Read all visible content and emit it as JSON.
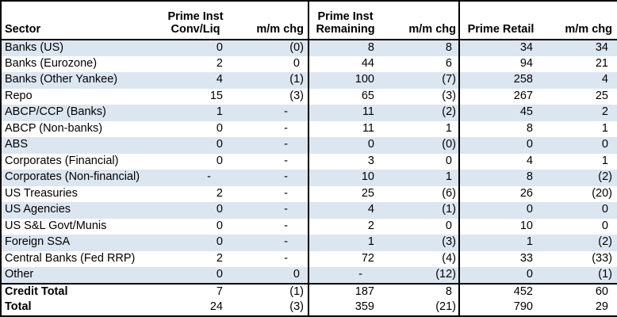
{
  "table": {
    "headers": {
      "sector": "Sector",
      "prime_inst_conv_line1": "Prime Inst",
      "prime_inst_conv_line2": "Conv/Liq",
      "mm_chg_1": "m/m chg",
      "prime_inst_rem_line1": "Prime Inst",
      "prime_inst_rem_line2": "Remaining",
      "mm_chg_2": "m/m chg",
      "prime_retail": "Prime Retail",
      "mm_chg_3": "m/m chg"
    },
    "rows": [
      {
        "sector": "Banks (US)",
        "conv": "0",
        "conv_chg": "(0)",
        "rem": "8",
        "rem_chg": "8",
        "retail": "34",
        "retail_chg": "34"
      },
      {
        "sector": "Banks (Eurozone)",
        "conv": "2",
        "conv_chg": "0",
        "rem": "44",
        "rem_chg": "6",
        "retail": "94",
        "retail_chg": "21"
      },
      {
        "sector": "Banks (Other Yankee)",
        "conv": "4",
        "conv_chg": "(1)",
        "rem": "100",
        "rem_chg": "(7)",
        "retail": "258",
        "retail_chg": "4"
      },
      {
        "sector": "Repo",
        "conv": "15",
        "conv_chg": "(3)",
        "rem": "65",
        "rem_chg": "(3)",
        "retail": "267",
        "retail_chg": "25"
      },
      {
        "sector": "ABCP/CCP (Banks)",
        "conv": "1",
        "conv_chg": "-",
        "rem": "11",
        "rem_chg": "(2)",
        "retail": "45",
        "retail_chg": "2"
      },
      {
        "sector": "ABCP (Non-banks)",
        "conv": "0",
        "conv_chg": "-",
        "rem": "11",
        "rem_chg": "1",
        "retail": "8",
        "retail_chg": "1"
      },
      {
        "sector": "ABS",
        "conv": "0",
        "conv_chg": "-",
        "rem": "0",
        "rem_chg": "(0)",
        "retail": "0",
        "retail_chg": "0"
      },
      {
        "sector": "Corporates (Financial)",
        "conv": "0",
        "conv_chg": "-",
        "rem": "3",
        "rem_chg": "0",
        "retail": "4",
        "retail_chg": "1"
      },
      {
        "sector": "Corporates (Non-financial)",
        "conv": "-",
        "conv_chg": "-",
        "rem": "10",
        "rem_chg": "1",
        "retail": "8",
        "retail_chg": "(2)"
      },
      {
        "sector": "US Treasuries",
        "conv": "2",
        "conv_chg": "-",
        "rem": "25",
        "rem_chg": "(6)",
        "retail": "26",
        "retail_chg": "(20)"
      },
      {
        "sector": "US Agencies",
        "conv": "0",
        "conv_chg": "-",
        "rem": "4",
        "rem_chg": "(1)",
        "retail": "0",
        "retail_chg": "0"
      },
      {
        "sector": "US S&L Govt/Munis",
        "conv": "0",
        "conv_chg": "-",
        "rem": "2",
        "rem_chg": "0",
        "retail": "10",
        "retail_chg": "0"
      },
      {
        "sector": "Foreign SSA",
        "conv": "0",
        "conv_chg": "-",
        "rem": "1",
        "rem_chg": "(3)",
        "retail": "1",
        "retail_chg": "(2)"
      },
      {
        "sector": "Central Banks (Fed RRP)",
        "conv": "2",
        "conv_chg": "-",
        "rem": "72",
        "rem_chg": "(4)",
        "retail": "33",
        "retail_chg": "(33)"
      },
      {
        "sector": "Other",
        "conv": "0",
        "conv_chg": "0",
        "rem": "-",
        "rem_chg": "(12)",
        "retail": "0",
        "retail_chg": "(1)"
      }
    ],
    "totals": [
      {
        "sector": "Credit Total",
        "conv": "7",
        "conv_chg": "(1)",
        "rem": "187",
        "rem_chg": "8",
        "retail": "452",
        "retail_chg": "60"
      },
      {
        "sector": "Total",
        "conv": "24",
        "conv_chg": "(3)",
        "rem": "359",
        "rem_chg": "(21)",
        "retail": "790",
        "retail_chg": "29"
      }
    ],
    "style": {
      "stripe_color": "#dce6f1",
      "border_color": "#000000",
      "text_color": "#000000"
    }
  }
}
